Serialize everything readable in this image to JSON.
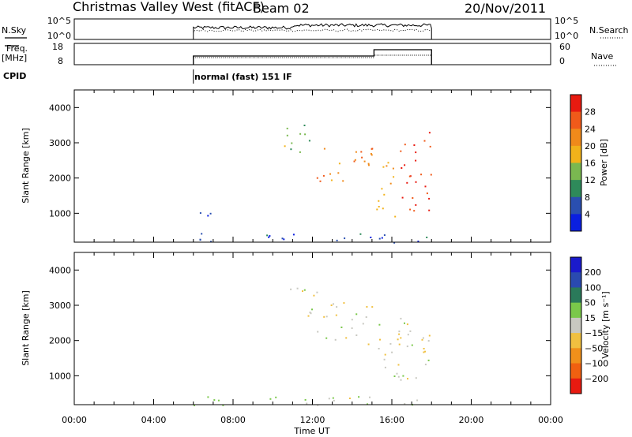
{
  "header": {
    "title": "Christmas Valley West (fitACF)",
    "beam": "Beam 02",
    "date": "20/Nov/2011"
  },
  "nsky_panel": {
    "left_label": "N.Sky",
    "left_ticks": [
      "10^5",
      "10^0"
    ],
    "right_ticks": [
      "10^5",
      "10^0"
    ],
    "right_label": "N.Search"
  },
  "freq_panel": {
    "left_label_1": "Freq.",
    "left_label_2": "[MHz]",
    "left_ticks": [
      "18",
      "8"
    ],
    "right_ticks": [
      "60",
      "0"
    ],
    "right_label": "Nave"
  },
  "cpid": {
    "label": "CPID",
    "program": "normal (fast) 151 IF"
  },
  "colors": {
    "power_scale": [
      "#0a1fe0",
      "#2a4fb0",
      "#2e8a5a",
      "#7ab850",
      "#f2b21a",
      "#f08a1a",
      "#f05a1a",
      "#e81a10"
    ],
    "velocity_scale": [
      "#1a1acc",
      "#2a4ab0",
      "#2a7a5a",
      "#7ac84a",
      "#c8c8c0",
      "#f0c040",
      "#f0901a",
      "#f06010",
      "#e81a10"
    ]
  },
  "chart_data": [
    {
      "type": "heatmap",
      "name": "power-panel",
      "title": "",
      "xlabel": "",
      "ylabel": "Slant Range [km]",
      "xlim_hours": [
        0,
        24
      ],
      "ylim_km": [
        180,
        4500
      ],
      "x_tick_labels": [
        "00:00",
        "04:00",
        "08:00",
        "12:00",
        "16:00",
        "20:00",
        "00:00"
      ],
      "y_tick_labels": [
        "1000",
        "2000",
        "3000",
        "4000"
      ],
      "colorbar_label": "Power [dB]",
      "colorbar_ticks": [
        "28",
        "24",
        "20",
        "16",
        "12",
        "8",
        "4"
      ],
      "clim": [
        0,
        32
      ],
      "data_start_hour": 6.0,
      "data_end_hour": 18.0,
      "echo_regions": [
        {
          "t0": 6.0,
          "t1": 7.0,
          "r0": 600,
          "r1": 1100,
          "level": 4
        },
        {
          "t0": 10.5,
          "t1": 12.2,
          "r0": 2700,
          "r1": 3600,
          "level": 14
        },
        {
          "t0": 12.2,
          "t1": 15.0,
          "r0": 1900,
          "r1": 3100,
          "level": 22
        },
        {
          "t0": 15.2,
          "t1": 16.4,
          "r0": 900,
          "r1": 2600,
          "level": 20
        },
        {
          "t0": 16.4,
          "t1": 18.0,
          "r0": 900,
          "r1": 3400,
          "level": 28
        },
        {
          "t0": 6.0,
          "t1": 18.0,
          "r0": 180,
          "r1": 450,
          "level": 6
        }
      ]
    },
    {
      "type": "heatmap",
      "name": "velocity-panel",
      "title": "",
      "xlabel": "Time UT",
      "ylabel": "Slant Range [km]",
      "xlim_hours": [
        0,
        24
      ],
      "ylim_km": [
        180,
        4500
      ],
      "x_tick_labels": [
        "00:00",
        "04:00",
        "08:00",
        "12:00",
        "16:00",
        "20:00",
        "00:00"
      ],
      "y_tick_labels": [
        "1000",
        "2000",
        "3000",
        "4000"
      ],
      "colorbar_label": "Velocity [m s⁻¹]",
      "colorbar_ticks": [
        "200",
        "100",
        "50",
        "15",
        "−15",
        "−50",
        "−100",
        "−200"
      ],
      "clim": [
        -250,
        250
      ],
      "data_start_hour": 6.0,
      "data_end_hour": 18.0,
      "echo_regions": [
        {
          "t0": 10.5,
          "t1": 12.2,
          "r0": 2700,
          "r1": 3600,
          "level": 0
        },
        {
          "t0": 12.2,
          "t1": 15.0,
          "r0": 1900,
          "r1": 3100,
          "level": 0
        },
        {
          "t0": 15.2,
          "t1": 16.4,
          "r0": 900,
          "r1": 2600,
          "level": 0
        },
        {
          "t0": 16.4,
          "t1": 18.0,
          "r0": 900,
          "r1": 2400,
          "level": 0
        },
        {
          "t0": 16.0,
          "t1": 17.5,
          "r0": 1800,
          "r1": 2800,
          "level": 30
        },
        {
          "t0": 6.0,
          "t1": 18.0,
          "r0": 180,
          "r1": 450,
          "level": -20
        }
      ]
    }
  ]
}
